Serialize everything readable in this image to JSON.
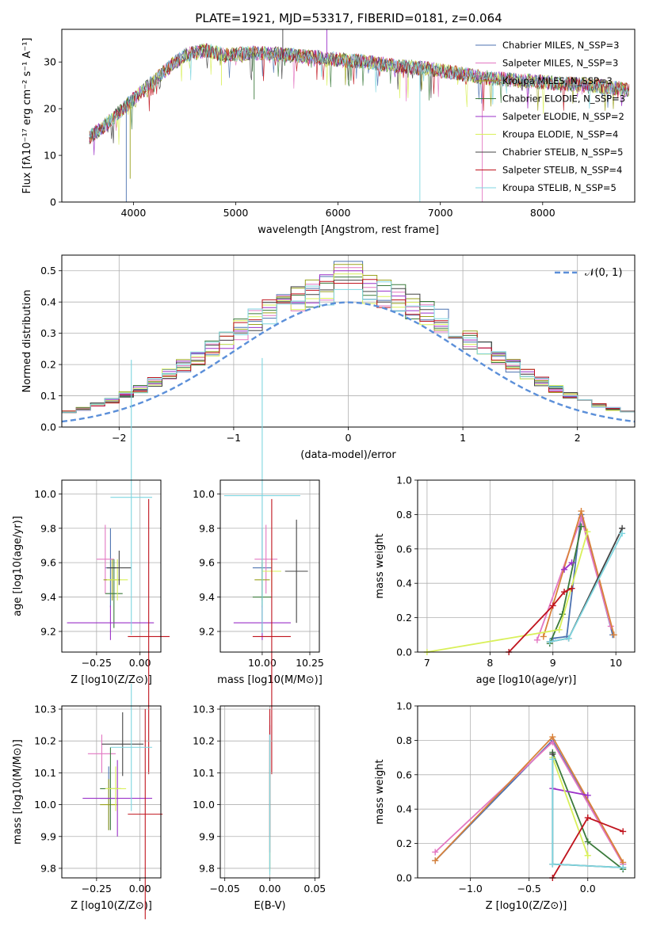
{
  "chart_data": [
    {
      "id": "spectrum",
      "type": "line",
      "title": "PLATE=1921, MJD=53317, FIBERID=0181, z=0.064",
      "xlabel": "wavelength [Angstrom, rest frame]",
      "ylabel": "Flux [fλ10⁻¹⁷ erg cm⁻² s⁻¹ A⁻¹]",
      "xlim": [
        3300,
        8900
      ],
      "ylim": [
        0,
        37
      ],
      "xticks": [
        "4000",
        "5000",
        "6000",
        "7000",
        "8000"
      ],
      "yticks": [
        "0",
        "10",
        "20",
        "30"
      ],
      "grid": false,
      "legend_position": "top-right",
      "continuum": {
        "x": [
          3570,
          3700,
          3850,
          3950,
          4100,
          4300,
          4500,
          4700,
          4900,
          5200,
          5500,
          5800,
          6000,
          6300,
          6600,
          6900,
          7200,
          7500,
          7800,
          8100,
          8500,
          8850
        ],
        "y": [
          14,
          16,
          19,
          21,
          24,
          28,
          31.5,
          32.5,
          31.5,
          32,
          31.5,
          31,
          30.5,
          30,
          29,
          28.5,
          27.5,
          26.5,
          26,
          25.5,
          25,
          24
        ]
      },
      "series": [
        {
          "name": "Chabrier MILES, N_SSP=3",
          "color": "#4c72b0"
        },
        {
          "name": "Salpeter MILES, N_SSP=3",
          "color": "#e377c2"
        },
        {
          "name": "Kroupa MILES, N_SSP=3",
          "color": "#9aa21e"
        },
        {
          "name": "Chabrier ELODIE, N_SSP=3",
          "color": "#3b7a3b"
        },
        {
          "name": "Salpeter ELODIE, N_SSP=2",
          "color": "#9b30c8"
        },
        {
          "name": "Kroupa ELODIE, N_SSP=4",
          "color": "#d9f05a"
        },
        {
          "name": "Chabrier STELIB, N_SSP=5",
          "color": "#444444"
        },
        {
          "name": "Salpeter STELIB, N_SSP=4",
          "color": "#c0141e"
        },
        {
          "name": "Kroupa STELIB, N_SSP=5",
          "color": "#7fd6e0"
        }
      ]
    },
    {
      "id": "residuals",
      "type": "line",
      "xlabel": "(data-model)/error",
      "ylabel": "Normed distribution",
      "xlim": [
        -2.5,
        2.5
      ],
      "ylim": [
        0,
        0.55
      ],
      "xticks": [
        "−2",
        "−1",
        "0",
        "1",
        "2"
      ],
      "yticks": [
        "0.0",
        "0.1",
        "0.2",
        "0.3",
        "0.4",
        "0.5"
      ],
      "grid": true,
      "legend": "𝒩(0, 1)",
      "legend_position": "top-right",
      "gaussian": {
        "mu": 0,
        "sigma": 1,
        "color": "#5b8fd9"
      },
      "bins": 40,
      "peak_values": [
        0.53,
        0.51,
        0.52,
        0.48,
        0.5,
        0.49,
        0.47,
        0.46,
        0.44
      ]
    },
    {
      "id": "age_vs_Z",
      "type": "scatter",
      "xlabel": "Z [log10(Z/Z⊙)]",
      "ylabel": "age  [log10(age/yr)]",
      "xlim": [
        -0.45,
        0.12
      ],
      "ylim": [
        9.08,
        10.08
      ],
      "xticks": [
        "−0.25",
        "0.00"
      ],
      "yticks": [
        "9.2",
        "9.4",
        "9.6",
        "9.8",
        "10.0"
      ],
      "grid": true
    },
    {
      "id": "age_vs_mass",
      "type": "scatter",
      "xlabel": "mass [log10(M/M⊙)]",
      "ylabel": "",
      "xlim": [
        9.78,
        10.3
      ],
      "ylim": [
        9.08,
        10.08
      ],
      "xticks": [
        "10.00",
        "10.25"
      ],
      "yticks": [
        "9.2",
        "9.4",
        "9.6",
        "9.8",
        "10.0"
      ],
      "grid": true
    },
    {
      "id": "weight_vs_age",
      "type": "line",
      "xlabel": "age  [log10(age/yr)]",
      "ylabel": "mass weight",
      "xlim": [
        6.85,
        10.3
      ],
      "ylim": [
        0,
        1.0
      ],
      "xticks": [
        "7",
        "8",
        "9",
        "10"
      ],
      "yticks": [
        "0.0",
        "0.2",
        "0.4",
        "0.6",
        "0.8",
        "1.0"
      ],
      "grid": true,
      "series": [
        {
          "color": "#4c72b0",
          "x": [
            9.0,
            9.22,
            9.45,
            9.95
          ],
          "y": [
            0.08,
            0.09,
            0.8,
            0.1
          ]
        },
        {
          "color": "#e377c2",
          "x": [
            8.75,
            9.45,
            9.92
          ],
          "y": [
            0.07,
            0.78,
            0.15
          ]
        },
        {
          "color": "#d9823a",
          "x": [
            8.85,
            9.45,
            9.97
          ],
          "y": [
            0.09,
            0.82,
            0.1
          ]
        },
        {
          "color": "#3b7a3b",
          "x": [
            8.95,
            9.15,
            9.45
          ],
          "y": [
            0.05,
            0.22,
            0.73
          ]
        },
        {
          "color": "#9b30c8",
          "x": [
            9.18,
            9.3
          ],
          "y": [
            0.48,
            0.52
          ]
        },
        {
          "color": "#d9f05a",
          "x": [
            7.0,
            9.1,
            9.55
          ],
          "y": [
            0.0,
            0.13,
            0.7
          ]
        },
        {
          "color": "#444444",
          "x": [
            8.95,
            9.25,
            10.1
          ],
          "y": [
            0.06,
            0.08,
            0.72
          ]
        },
        {
          "color": "#c0141e",
          "x": [
            8.3,
            9.0,
            9.18,
            9.3
          ],
          "y": [
            0.0,
            0.27,
            0.35,
            0.37
          ]
        },
        {
          "color": "#7fd6e0",
          "x": [
            8.95,
            9.25,
            10.1
          ],
          "y": [
            0.06,
            0.08,
            0.69
          ]
        }
      ]
    },
    {
      "id": "mass_vs_Z",
      "type": "scatter",
      "xlabel": "Z [log10(Z/Z⊙)]",
      "ylabel": "mass [log10(M/M⊙)]",
      "xlim": [
        -0.45,
        0.12
      ],
      "ylim": [
        9.77,
        10.31
      ],
      "xticks": [
        "−0.25",
        "0.00"
      ],
      "yticks": [
        "9.8",
        "9.9",
        "10.0",
        "10.1",
        "10.2",
        "10.3"
      ],
      "grid": true
    },
    {
      "id": "mass_vs_ebv",
      "type": "scatter",
      "xlabel": "E(B-V)",
      "ylabel": "",
      "xlim": [
        -0.055,
        0.055
      ],
      "ylim": [
        9.77,
        10.31
      ],
      "xticks": [
        "−0.05",
        "0.00",
        "0.05"
      ],
      "yticks": [
        "9.8",
        "9.9",
        "10.0",
        "10.1",
        "10.2",
        "10.3"
      ],
      "grid": true
    },
    {
      "id": "weight_vs_Z",
      "type": "line",
      "xlabel": "Z [log10(Z/Z⊙)]",
      "ylabel": "mass weight",
      "xlim": [
        -1.45,
        0.4
      ],
      "ylim": [
        0,
        1.0
      ],
      "xticks": [
        "−1.0",
        "−0.5",
        "0.0"
      ],
      "yticks": [
        "0.0",
        "0.2",
        "0.4",
        "0.6",
        "0.8",
        "1.0"
      ],
      "grid": true,
      "series": [
        {
          "color": "#4c72b0",
          "x": [
            -1.3,
            -0.3,
            0.3
          ],
          "y": [
            0.1,
            0.8,
            0.08
          ]
        },
        {
          "color": "#e377c2",
          "x": [
            -1.3,
            -0.3,
            0.3
          ],
          "y": [
            0.15,
            0.79,
            0.08
          ]
        },
        {
          "color": "#d9823a",
          "x": [
            -1.3,
            -0.3,
            0.3
          ],
          "y": [
            0.1,
            0.82,
            0.09
          ]
        },
        {
          "color": "#3b7a3b",
          "x": [
            -0.3,
            0.0,
            0.3
          ],
          "y": [
            0.73,
            0.21,
            0.05
          ]
        },
        {
          "color": "#9b30c8",
          "x": [
            -0.3,
            0.0
          ],
          "y": [
            0.52,
            0.48
          ]
        },
        {
          "color": "#d9f05a",
          "x": [
            -0.3,
            0.0,
            0.0
          ],
          "y": [
            0.7,
            0.13,
            0.13
          ]
        },
        {
          "color": "#444444",
          "x": [
            -0.3,
            -0.3,
            0.3
          ],
          "y": [
            0.72,
            0.08,
            0.06
          ]
        },
        {
          "color": "#c0141e",
          "x": [
            -0.3,
            0.0,
            0.3
          ],
          "y": [
            0.0,
            0.35,
            0.27
          ]
        },
        {
          "color": "#7fd6e0",
          "x": [
            -0.3,
            -0.3,
            0.3
          ],
          "y": [
            0.69,
            0.08,
            0.06
          ]
        }
      ]
    }
  ]
}
